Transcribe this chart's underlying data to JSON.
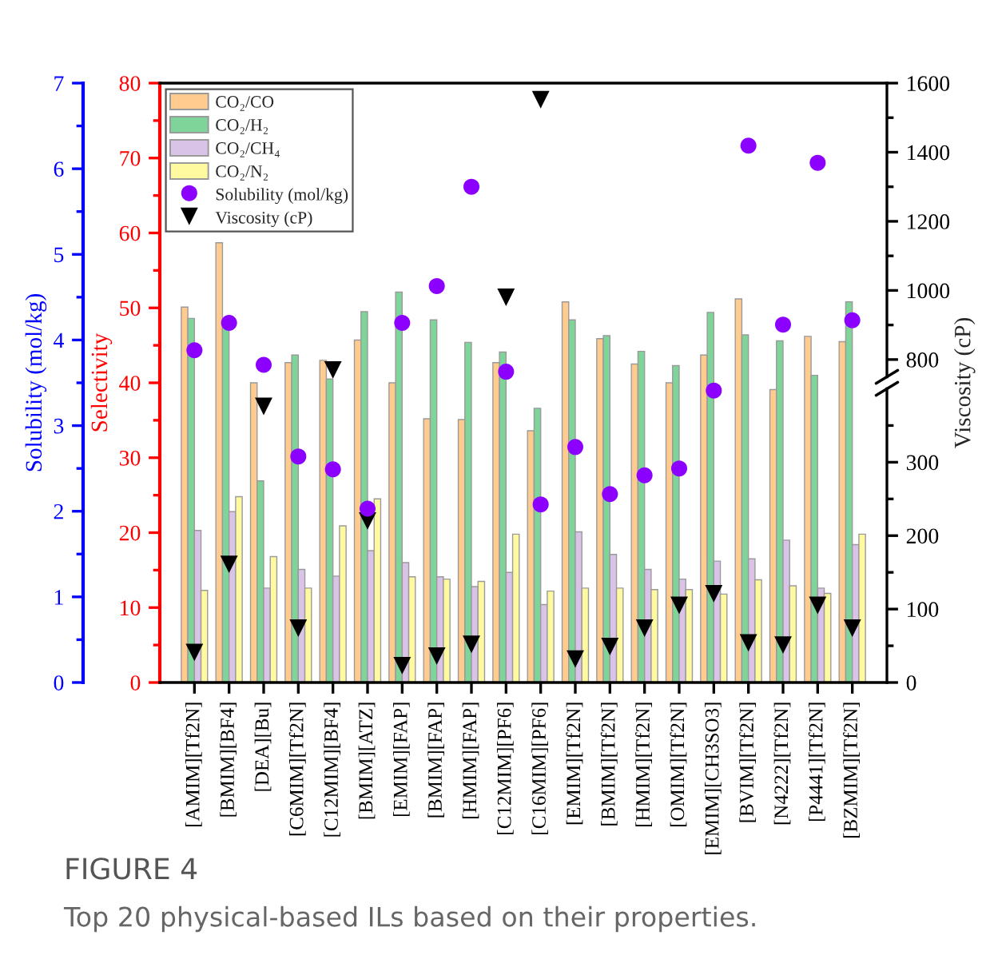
{
  "chart_data": [
    {
      "type": "bar",
      "title": "FIGURE 4",
      "subtitle": "Top 20 physical-based ILs based on their properties.",
      "ylabel": "Selectivity",
      "y2label": "Viscosity (cP)",
      "y3label": "Solubility (mol/kg)",
      "categories": [
        "[AMIM][Tf2N]",
        "[BMIM][BF4]",
        "[DEA][Bu]",
        "[C6MIM][Tf2N]",
        "[C12MIM][BF4]",
        "[BMIM][ATZ]",
        "[EMIM][FAP]",
        "[BMIM][FAP]",
        "[HMIM][FAP]",
        "[C12MIM][PF6]",
        "[C16MIM][PF6]",
        "[EMIM][Tf2N]",
        "[BMIM][Tf2N]",
        "[HMIM][Tf2N]",
        "[OMIM][Tf2N]",
        "[EMIM][CH3SO3]",
        "[BVIM][Tf2N]",
        "[N4222][Tf2N]",
        "[P4441][Tf2N]",
        "[BZMIM][Tf2N]"
      ],
      "series": [
        {
          "name": "CO₂/CO",
          "color": "#ffcb8e",
          "values": [
            50.1,
            58.7,
            40.0,
            42.7,
            43.0,
            45.7,
            40.0,
            35.2,
            35.1,
            42.7,
            33.6,
            50.8,
            45.9,
            42.5,
            40.0,
            43.7,
            51.2,
            39.1,
            46.2,
            45.5
          ]
        },
        {
          "name": "CO₂/H₂",
          "color": "#7fd49a",
          "values": [
            48.6,
            48.0,
            26.9,
            43.7,
            40.5,
            49.5,
            52.1,
            48.4,
            45.4,
            44.1,
            36.6,
            48.4,
            46.3,
            44.2,
            42.3,
            49.4,
            46.4,
            45.6,
            41.0,
            50.8
          ]
        },
        {
          "name": "CO₂/CH₄",
          "color": "#d9c3e6",
          "values": [
            20.3,
            22.8,
            12.6,
            15.1,
            14.2,
            17.6,
            16.0,
            14.1,
            12.8,
            14.7,
            10.4,
            20.1,
            17.1,
            15.1,
            13.8,
            16.2,
            16.5,
            19.0,
            12.6,
            18.4
          ]
        },
        {
          "name": "CO₂/N₂",
          "color": "#fffaa0",
          "values": [
            12.3,
            24.8,
            16.8,
            12.6,
            20.9,
            24.5,
            14.1,
            13.8,
            13.5,
            19.8,
            12.2,
            12.6,
            12.6,
            12.4,
            12.4,
            11.8,
            13.7,
            12.9,
            11.9,
            19.8
          ]
        },
        {
          "name": "Solubility (mol/kg)",
          "type": "scatter",
          "axis": "y3",
          "marker": "circle",
          "color": "#8b00ff",
          "values": [
            3.88,
            4.2,
            3.71,
            2.64,
            2.49,
            2.03,
            4.2,
            4.63,
            5.79,
            3.63,
            2.08,
            2.75,
            2.2,
            2.42,
            2.5,
            3.41,
            6.27,
            4.18,
            6.07,
            4.23
          ]
        },
        {
          "name": "Viscosity (cP)",
          "type": "scatter",
          "axis": "y2",
          "marker": "triangle",
          "color": "#000000",
          "values": [
            41,
            161,
            376,
            74,
            null,
            220,
            23,
            36,
            52,
            null,
            null,
            32,
            49,
            74,
            105,
            121,
            54,
            51,
            105,
            74
          ]
        }
      ],
      "ylim": [
        0,
        80
      ],
      "yticks": [
        0,
        10,
        20,
        30,
        40,
        50,
        60,
        70,
        80
      ],
      "y2lim": [
        0,
        400
      ],
      "y2ticks": [
        0,
        100,
        200,
        300
      ],
      "y3lim": [
        0,
        7
      ],
      "y3ticks": [
        0,
        1,
        2,
        3,
        4,
        5,
        6,
        7
      ],
      "legend": "top left"
    },
    {
      "type": "scatter",
      "series": [
        {
          "marker": "triangle",
          "color": "#000000",
          "values": [
            null,
            null,
            null,
            null,
            770,
            null,
            null,
            null,
            null,
            980,
            1552,
            null,
            null,
            null,
            null,
            null,
            null,
            null,
            null,
            null
          ]
        }
      ],
      "ylim": [
        750,
        1600
      ],
      "yticks": [
        800,
        1000,
        1200,
        1400,
        1600
      ],
      "tick_labels": "y"
    }
  ]
}
